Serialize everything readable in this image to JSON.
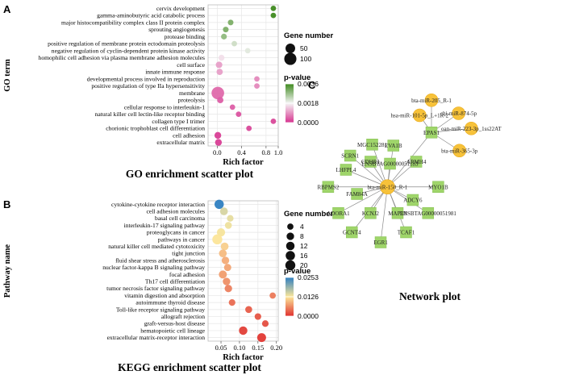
{
  "panels": {
    "a": {
      "letter": "A"
    },
    "b": {
      "letter": "B"
    },
    "c": {
      "letter": "C"
    }
  },
  "chart_data": [
    {
      "type": "scatter",
      "panel": "A",
      "title": "GO enrichment scatter plot",
      "xlabel": "Rich factor",
      "ylabel": "GO term",
      "xlim": [
        -0.15,
        1.0
      ],
      "xticks": [
        "0.0",
        "0.4",
        "0.8",
        "1.0"
      ],
      "xtick_values": [
        0.0,
        0.4,
        0.8,
        1.0
      ],
      "grid": true,
      "size_legend": {
        "title": "Gene number",
        "entries": [
          {
            "label": "50",
            "value": 50
          },
          {
            "label": "100",
            "value": 100
          }
        ]
      },
      "color_legend": {
        "title": "p-value",
        "labels": [
          "0.0036",
          "0.0018",
          "0.0000"
        ],
        "low_color": "#d6338f",
        "mid_color": "#f5f5f5",
        "high_color": "#3f8a1f"
      },
      "points": [
        {
          "term": "cervix development",
          "x": 0.92,
          "size": 5,
          "pvalue": 0.0036
        },
        {
          "term": "gamma-aminobutyric acid catabolic process",
          "x": 0.92,
          "size": 5,
          "pvalue": 0.0036
        },
        {
          "term": "major histocompatibility complex class II protein complex",
          "x": 0.22,
          "size": 6,
          "pvalue": 0.003
        },
        {
          "term": "sprouting angiogenesis",
          "x": 0.14,
          "size": 6,
          "pvalue": 0.003
        },
        {
          "term": "protease binding",
          "x": 0.11,
          "size": 7,
          "pvalue": 0.0028
        },
        {
          "term": "positive regulation of membrane protein ectodomain proteolysis",
          "x": 0.28,
          "size": 5,
          "pvalue": 0.0022
        },
        {
          "term": "negative regulation of cyclin-dependent protein kinase activity",
          "x": 0.5,
          "size": 5,
          "pvalue": 0.002
        },
        {
          "term": "homophilic cell adhesion via plasma membrane adhesion molecules",
          "x": 0.07,
          "size": 8,
          "pvalue": 0.0016
        },
        {
          "term": "cell surface",
          "x": 0.03,
          "size": 12,
          "pvalue": 0.001
        },
        {
          "term": "innate immune response",
          "x": 0.04,
          "size": 10,
          "pvalue": 0.001
        },
        {
          "term": "developmental process involved in reproduction",
          "x": 0.65,
          "size": 5,
          "pvalue": 0.0008
        },
        {
          "term": "positive regulation of type IIa hypersensitivity",
          "x": 0.65,
          "size": 5,
          "pvalue": 0.0008
        },
        {
          "term": "membrane",
          "x": 0.01,
          "size": 110,
          "pvalue": 0.0005
        },
        {
          "term": "proteolysis",
          "x": 0.05,
          "size": 10,
          "pvalue": 0.0004
        },
        {
          "term": "cellular response to interleukin-1",
          "x": 0.25,
          "size": 5,
          "pvalue": 0.0004
        },
        {
          "term": "natural killer cell lectin-like receptor binding",
          "x": 0.35,
          "size": 5,
          "pvalue": 0.0003
        },
        {
          "term": "collagen type I trimer",
          "x": 0.92,
          "size": 5,
          "pvalue": 0.0002
        },
        {
          "term": "chorionic trophoblast cell differentiation",
          "x": 0.52,
          "size": 5,
          "pvalue": 0.0002
        },
        {
          "term": "cell adhesion",
          "x": 0.01,
          "size": 14,
          "pvalue": 0.0001
        },
        {
          "term": "extracellular matrix",
          "x": 0.02,
          "size": 14,
          "pvalue": 0.0001
        }
      ]
    },
    {
      "type": "scatter",
      "panel": "B",
      "title": "KEGG enrichment scatter plot",
      "xlabel": "Rich factor",
      "ylabel": "Pathway name",
      "xlim": [
        0.015,
        0.205
      ],
      "xticks": [
        "0.05",
        "0.10",
        "0.15",
        "0.20"
      ],
      "xtick_values": [
        0.05,
        0.1,
        0.15,
        0.2
      ],
      "grid": true,
      "size_legend": {
        "title": "Gene number",
        "entries": [
          {
            "label": "4",
            "value": 4
          },
          {
            "label": "8",
            "value": 8
          },
          {
            "label": "12",
            "value": 12
          },
          {
            "label": "16",
            "value": 16
          },
          {
            "label": "20",
            "value": 20
          }
        ]
      },
      "color_legend": {
        "title": "p-value",
        "labels": [
          "0.0253",
          "0.0126",
          "0.0000"
        ],
        "low_color": "#e0312f",
        "mid_color": "#fce79a",
        "high_color": "#2f7fc1"
      },
      "points": [
        {
          "term": "cytokine-cytokine receptor interaction",
          "x": 0.045,
          "size": 16,
          "pvalue": 0.0253
        },
        {
          "term": "cell adhesion molecules",
          "x": 0.058,
          "size": 9,
          "pvalue": 0.015
        },
        {
          "term": "basal cell carcinoma",
          "x": 0.075,
          "size": 5,
          "pvalue": 0.014
        },
        {
          "term": "interleukin-17 signaling pathway",
          "x": 0.07,
          "size": 6,
          "pvalue": 0.0135
        },
        {
          "term": "proteoglycans in cancer",
          "x": 0.05,
          "size": 11,
          "pvalue": 0.013
        },
        {
          "term": "pathways in cancer",
          "x": 0.04,
          "size": 20,
          "pvalue": 0.0125
        },
        {
          "term": "natural killer cell mediated cytotoxicity",
          "x": 0.06,
          "size": 9,
          "pvalue": 0.011
        },
        {
          "term": "tight junction",
          "x": 0.055,
          "size": 9,
          "pvalue": 0.0095
        },
        {
          "term": "fluid shear stress and atherosclerosis",
          "x": 0.062,
          "size": 8,
          "pvalue": 0.0085
        },
        {
          "term": "nuclear factor-kappa B signaling pathway",
          "x": 0.068,
          "size": 7,
          "pvalue": 0.008
        },
        {
          "term": "focal adhesion",
          "x": 0.055,
          "size": 10,
          "pvalue": 0.0075
        },
        {
          "term": "Th17 cell differentiation",
          "x": 0.065,
          "size": 8,
          "pvalue": 0.0065
        },
        {
          "term": "tumor necrosis factor signaling pathway",
          "x": 0.07,
          "size": 8,
          "pvalue": 0.0055
        },
        {
          "term": "vitamin digestion and absorption",
          "x": 0.19,
          "size": 4,
          "pvalue": 0.005
        },
        {
          "term": "autoimmune thyroid disease",
          "x": 0.08,
          "size": 5,
          "pvalue": 0.004
        },
        {
          "term": "Toll-like receptor signaling pathway",
          "x": 0.125,
          "size": 6,
          "pvalue": 0.003
        },
        {
          "term": "allograft rejection",
          "x": 0.15,
          "size": 5,
          "pvalue": 0.0025
        },
        {
          "term": "graft-versus-host disease",
          "x": 0.17,
          "size": 5,
          "pvalue": 0.002
        },
        {
          "term": "hematopoietic cell lineage",
          "x": 0.11,
          "size": 12,
          "pvalue": 0.001
        },
        {
          "term": "extracellular matrix-receptor interaction",
          "x": 0.16,
          "size": 14,
          "pvalue": 0.0005
        }
      ]
    }
  ],
  "network": {
    "title": "Network plot",
    "nodes": [
      {
        "id": "hub150",
        "label": "bta-miR-150_R-1",
        "kind": "mirna",
        "gx": 0.24,
        "gy": 0.455
      },
      {
        "id": "epas1",
        "label": "EPAS1",
        "kind": "gene",
        "gx": 0.5,
        "gy": 0.185
      },
      {
        "id": "m205",
        "label": "bta-miR-205_R-1",
        "kind": "mirna",
        "gx": 0.5,
        "gy": 0.025
      },
      {
        "id": "m101",
        "label": "hsa-miR-101-5p_L+1R-2",
        "kind": "mirna",
        "gx": 0.43,
        "gy": 0.1
      },
      {
        "id": "m874",
        "label": "chi-miR-874-5p",
        "kind": "mirna",
        "gx": 0.66,
        "gy": 0.09
      },
      {
        "id": "m223",
        "label": "oan-miR-223-3p_1ss22AT",
        "kind": "mirna",
        "gx": 0.735,
        "gy": 0.165
      },
      {
        "id": "m365",
        "label": "bta-miR-365-3p",
        "kind": "mirna",
        "gx": 0.665,
        "gy": 0.275
      },
      {
        "id": "mgc",
        "label": "MGC152281",
        "kind": "gene",
        "gx": 0.15,
        "gy": 0.245
      },
      {
        "id": "eva1b",
        "label": "EVA1B",
        "kind": "gene",
        "gx": 0.275,
        "gy": 0.25
      },
      {
        "id": "scrn1",
        "label": "SCRN1",
        "kind": "gene",
        "gx": 0.02,
        "gy": 0.3
      },
      {
        "id": "cdhr1",
        "label": "CDHR1",
        "kind": "gene",
        "gx": 0.14,
        "gy": 0.33
      },
      {
        "id": "ensa",
        "label": "ENSBTAG00000051183",
        "kind": "gene",
        "gx": 0.255,
        "gy": 0.34
      },
      {
        "id": "armh4",
        "label": "ARMH4",
        "kind": "gene",
        "gx": 0.41,
        "gy": 0.33
      },
      {
        "id": "lhfpl4",
        "label": "LHFPL4",
        "kind": "gene",
        "gx": -0.005,
        "gy": 0.37
      },
      {
        "id": "rbpms2",
        "label": "RBPMS2",
        "kind": "gene",
        "gx": -0.11,
        "gy": 0.455
      },
      {
        "id": "fam84a",
        "label": "FAM84A",
        "kind": "gene",
        "gx": 0.06,
        "gy": 0.49
      },
      {
        "id": "myo1b",
        "label": "MYO1B",
        "kind": "gene",
        "gx": 0.54,
        "gy": 0.455
      },
      {
        "id": "adcy6",
        "label": "ADCY6",
        "kind": "gene",
        "gx": 0.39,
        "gy": 0.52
      },
      {
        "id": "adora1",
        "label": "ADORA1",
        "kind": "gene",
        "gx": -0.05,
        "gy": 0.585
      },
      {
        "id": "kcnj2",
        "label": "KCNJ2",
        "kind": "gene",
        "gx": 0.14,
        "gy": 0.585
      },
      {
        "id": "map1b",
        "label": "MAP1B",
        "kind": "gene",
        "gx": 0.3,
        "gy": 0.585
      },
      {
        "id": "ensb",
        "label": "ENSBTAG00000051981",
        "kind": "gene",
        "gx": 0.48,
        "gy": 0.585
      },
      {
        "id": "gcnt4",
        "label": "GCNT4",
        "kind": "gene",
        "gx": 0.03,
        "gy": 0.68
      },
      {
        "id": "tcaf1",
        "label": "TCAF1",
        "kind": "gene",
        "gx": 0.35,
        "gy": 0.68
      },
      {
        "id": "egr1",
        "label": "EGR1",
        "kind": "gene",
        "gx": 0.2,
        "gy": 0.73
      }
    ],
    "edges": [
      [
        "hub150",
        "epas1"
      ],
      [
        "hub150",
        "mgc"
      ],
      [
        "hub150",
        "eva1b"
      ],
      [
        "hub150",
        "scrn1"
      ],
      [
        "hub150",
        "cdhr1"
      ],
      [
        "hub150",
        "ensa"
      ],
      [
        "hub150",
        "armh4"
      ],
      [
        "hub150",
        "lhfpl4"
      ],
      [
        "hub150",
        "rbpms2"
      ],
      [
        "hub150",
        "fam84a"
      ],
      [
        "hub150",
        "myo1b"
      ],
      [
        "hub150",
        "adcy6"
      ],
      [
        "hub150",
        "adora1"
      ],
      [
        "hub150",
        "kcnj2"
      ],
      [
        "hub150",
        "map1b"
      ],
      [
        "hub150",
        "ensb"
      ],
      [
        "hub150",
        "gcnt4"
      ],
      [
        "hub150",
        "tcaf1"
      ],
      [
        "hub150",
        "egr1"
      ],
      [
        "epas1",
        "m205"
      ],
      [
        "epas1",
        "m101"
      ],
      [
        "epas1",
        "m874"
      ],
      [
        "epas1",
        "m223"
      ],
      [
        "epas1",
        "m365"
      ]
    ],
    "colors": {
      "mirna": "#f7c23a",
      "mirna_stroke": "#e8a814",
      "gene": "#9fd56a",
      "gene_stroke": "#86bf52",
      "edge": "#8a8a8a"
    }
  }
}
